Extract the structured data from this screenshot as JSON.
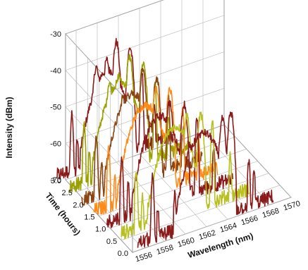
{
  "chart_data": {
    "type": "line",
    "subtype": "3d-waterfall",
    "title": "",
    "xlabel": "Wavelength (nm)",
    "ylabel": "Intensity (dBm)",
    "zlabel": "Time (hours)",
    "xlim": [
      1555,
      1570
    ],
    "ylim": [
      -70,
      -30
    ],
    "zlim": [
      0.0,
      3.0
    ],
    "x_ticks": [
      "1556",
      "1558",
      "1560",
      "1562",
      "1564",
      "1566",
      "1568",
      "1570"
    ],
    "y_ticks": [
      "-70",
      "-60",
      "-50",
      "-40",
      "-30"
    ],
    "z_ticks": [
      "0.0",
      "0.5",
      "1.0",
      "1.5",
      "2.0",
      "2.5",
      "3.0"
    ],
    "grid": true,
    "series": [
      {
        "time": 0.0,
        "color": "#8B1A1A",
        "peaks": [
          [
            1556.9,
            -51
          ],
          [
            1557.4,
            -60
          ],
          [
            1559.0,
            -58
          ],
          [
            1559.7,
            -57
          ],
          [
            1560.4,
            -46
          ],
          [
            1561.6,
            -49
          ],
          [
            1563.5,
            -42
          ],
          [
            1564.3,
            -41
          ],
          [
            1566.0,
            -56
          ],
          [
            1566.5,
            -59
          ]
        ]
      },
      {
        "time": 0.5,
        "color": "#B8C020",
        "peaks": [
          [
            1556.4,
            -52
          ],
          [
            1557.0,
            -60
          ],
          [
            1558.6,
            -57
          ],
          [
            1559.2,
            -51
          ],
          [
            1560.0,
            -44
          ],
          [
            1561.2,
            -42
          ],
          [
            1562.5,
            -43
          ],
          [
            1563.6,
            -46
          ],
          [
            1565.3,
            -57
          ]
        ]
      },
      {
        "time": 1.0,
        "color": "#8B1A1A",
        "peaks": [
          [
            1556.1,
            -52
          ],
          [
            1556.7,
            -59
          ],
          [
            1558.3,
            -57
          ],
          [
            1558.9,
            -46
          ],
          [
            1559.6,
            -44
          ],
          [
            1560.6,
            -41
          ],
          [
            1562.0,
            -43
          ],
          [
            1563.2,
            -48
          ],
          [
            1564.8,
            -58
          ]
        ]
      },
      {
        "time": 1.5,
        "color": "#FF8C1A",
        "peaks": [
          [
            1555.9,
            -52
          ],
          [
            1556.5,
            -60
          ],
          [
            1558.0,
            -57
          ],
          [
            1558.6,
            -45
          ],
          [
            1559.3,
            -44
          ],
          [
            1560.4,
            -40
          ],
          [
            1561.7,
            -42
          ],
          [
            1562.9,
            -48
          ],
          [
            1564.4,
            -58
          ]
        ]
      },
      {
        "time": 2.0,
        "color": "#8B4513",
        "peaks": [
          [
            1555.8,
            -52
          ],
          [
            1556.3,
            -60
          ],
          [
            1557.8,
            -56
          ],
          [
            1558.3,
            -44
          ],
          [
            1559.1,
            -43
          ],
          [
            1560.2,
            -39
          ],
          [
            1561.5,
            -42
          ],
          [
            1562.6,
            -48
          ],
          [
            1564.0,
            -58
          ]
        ]
      },
      {
        "time": 2.5,
        "color": "#9AA000",
        "peaks": [
          [
            1555.7,
            -52
          ],
          [
            1556.2,
            -60
          ],
          [
            1557.6,
            -56
          ],
          [
            1558.1,
            -43
          ],
          [
            1559.0,
            -42
          ],
          [
            1560.0,
            -38
          ],
          [
            1561.3,
            -41
          ],
          [
            1562.4,
            -48
          ],
          [
            1563.7,
            -58
          ]
        ]
      },
      {
        "time": 3.0,
        "color": "#8B1A1A",
        "peaks": [
          [
            1555.6,
            -52
          ],
          [
            1556.1,
            -60
          ],
          [
            1557.5,
            -55
          ],
          [
            1557.9,
            -42
          ],
          [
            1558.9,
            -41
          ],
          [
            1559.8,
            -37
          ],
          [
            1561.1,
            -40
          ],
          [
            1562.2,
            -47
          ],
          [
            1563.4,
            -58
          ]
        ]
      }
    ]
  }
}
